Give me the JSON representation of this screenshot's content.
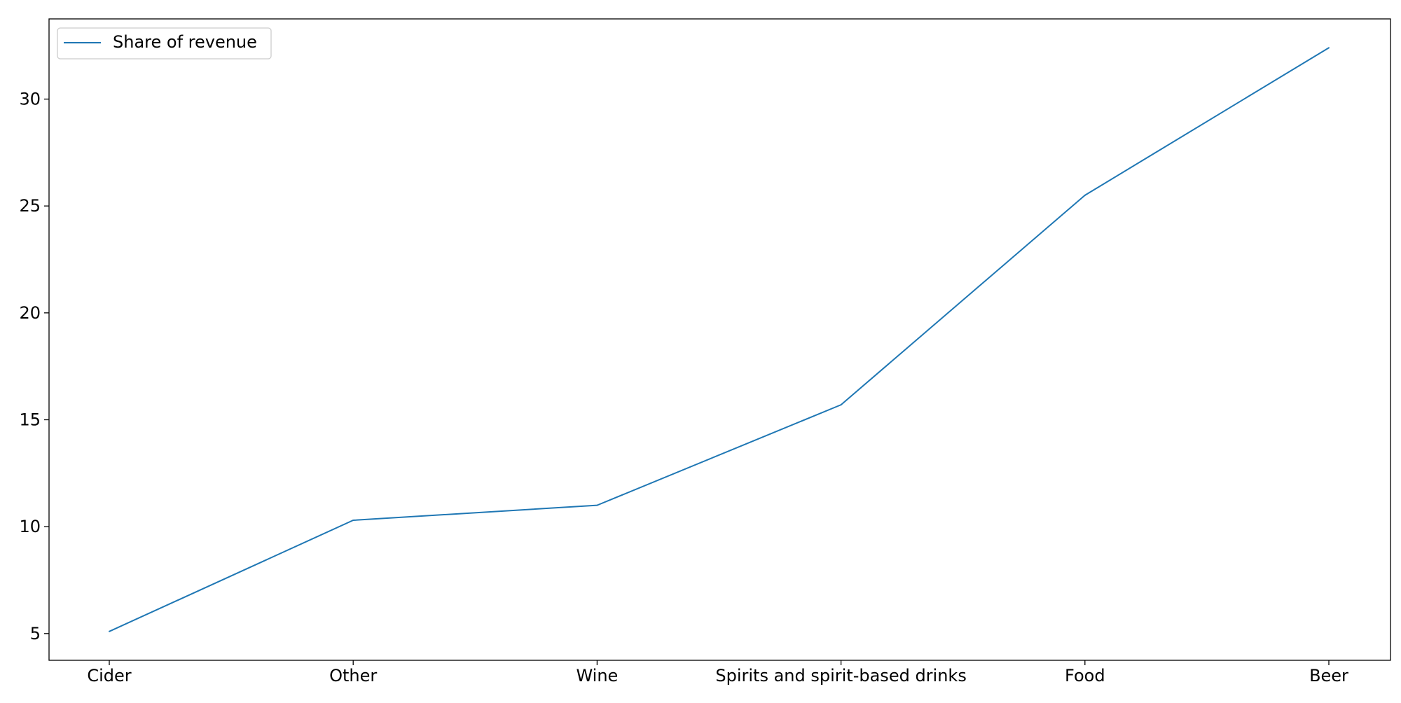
{
  "chart_data": {
    "type": "line",
    "categories": [
      "Cider",
      "Other",
      "Wine",
      "Spirits and spirit-based drinks",
      "Food",
      "Beer"
    ],
    "series": [
      {
        "name": "Share of revenue",
        "values": [
          5.1,
          10.3,
          11.0,
          15.7,
          25.5,
          32.4
        ],
        "color": "#1f77b4"
      }
    ],
    "yticks": [
      5,
      10,
      15,
      20,
      25,
      30
    ],
    "ylim": [
      3.75,
      33.75
    ],
    "grid": false,
    "legend": "top-left"
  }
}
